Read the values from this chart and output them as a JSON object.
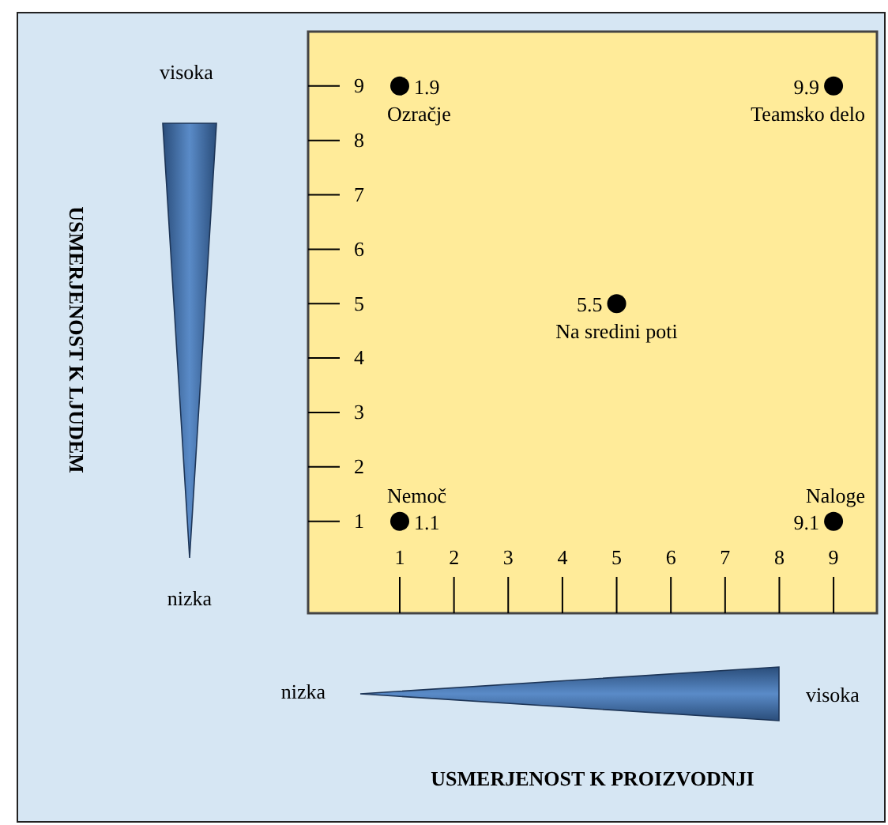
{
  "chart_data": {
    "type": "scatter",
    "x": [
      1,
      9,
      5,
      1,
      9
    ],
    "values": [
      9,
      9,
      5,
      1,
      1
    ],
    "color": "#000000",
    "marker": "circle",
    "xlim": [
      -0.69,
      9.8
    ],
    "ylim": [
      -0.69,
      10
    ],
    "xticks": [
      1,
      2,
      3,
      4,
      5,
      6,
      7,
      8,
      9
    ],
    "yticks": [
      1,
      2,
      3,
      4,
      5,
      6,
      7,
      8,
      9
    ],
    "grid": false,
    "annotations": [
      "visoka",
      "nizka",
      "nizka",
      "visoka",
      "USMERJENOST K LJUDEM",
      "USMERJENOST K PROIZVODNJI",
      {
        "text": "1.9",
        "x": 1,
        "y": 9
      },
      {
        "text": "9.9",
        "x": 9,
        "y": 9
      },
      {
        "text": "5.5",
        "x": 5,
        "y": 5
      },
      {
        "text": "1.1",
        "x": 1,
        "y": 1
      },
      {
        "text": "9.1",
        "x": 9,
        "y": 1
      },
      {
        "text": "Ozračje",
        "x": 1,
        "y": 9
      },
      {
        "text": "Teamsko delo",
        "x": 9,
        "y": 9
      },
      {
        "text": "Na sredini poti",
        "x": 5,
        "y": 5
      },
      {
        "text": "Nemoč",
        "x": 1,
        "y": 1
      },
      {
        "text": "Naloge",
        "x": 9,
        "y": 1
      }
    ]
  }
}
